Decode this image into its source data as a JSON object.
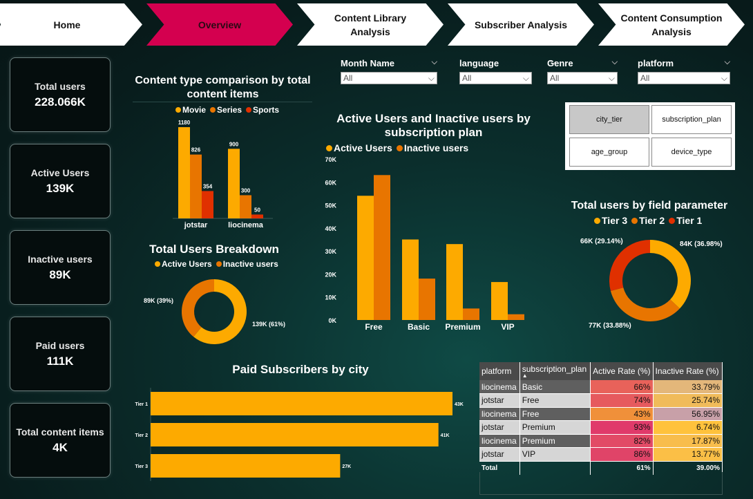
{
  "nav": [
    {
      "label": "Home",
      "active": false
    },
    {
      "label": "Overview",
      "active": true
    },
    {
      "label": "Content Library Analysis",
      "active": false
    },
    {
      "label": "Subscriber Analysis",
      "active": false
    },
    {
      "label": "Content Consumption Analysis",
      "active": false
    }
  ],
  "kpis": [
    {
      "label": "Total users",
      "value": "228.066K"
    },
    {
      "label": "Active Users",
      "value": "139K"
    },
    {
      "label": "Inactive users",
      "value": "89K"
    },
    {
      "label": "Paid users",
      "value": "111K"
    },
    {
      "label": "Total content items",
      "value": "4K"
    }
  ],
  "filters": [
    {
      "label": "Month Name",
      "value": "All"
    },
    {
      "label": "language",
      "value": "All"
    },
    {
      "label": "Genre",
      "value": "All"
    },
    {
      "label": "platform",
      "value": "All"
    }
  ],
  "field_params": [
    {
      "label": "city_tier",
      "selected": true
    },
    {
      "label": "subscription_plan",
      "selected": false
    },
    {
      "label": "age_group",
      "selected": false
    },
    {
      "label": "device_type",
      "selected": false
    }
  ],
  "colors": {
    "yellow": "#fdaa00",
    "orange": "#e87500",
    "red": "#e03000",
    "accent": "#d4004f"
  },
  "content_chart": {
    "title": "Content type comparison by total content items",
    "legend": [
      "Movie",
      "Series",
      "Sports"
    ],
    "chart_data": {
      "type": "bar",
      "categories": [
        "jotstar",
        "liocinema"
      ],
      "series": [
        {
          "name": "Movie",
          "values": [
            1180,
            900
          ]
        },
        {
          "name": "Series",
          "values": [
            826,
            300
          ]
        },
        {
          "name": "Sports",
          "values": [
            354,
            50
          ]
        }
      ],
      "data_labels": [
        [
          "1180",
          "826",
          "354"
        ],
        [
          "900",
          "300",
          "50"
        ]
      ]
    }
  },
  "breakdown_chart": {
    "title": "Total Users Breakdown",
    "legend": [
      "Active Users",
      "Inactive users"
    ],
    "chart_data": {
      "type": "pie",
      "labels": [
        "Active Users",
        "Inactive users"
      ],
      "values": [
        139,
        89
      ],
      "data_labels": [
        "139K (61%)",
        "89K (39%)"
      ]
    }
  },
  "plan_chart": {
    "title": "Active Users and Inactive users by subscription plan",
    "legend": [
      "Active Users",
      "Inactive users"
    ],
    "chart_data": {
      "type": "bar",
      "categories": [
        "Free",
        "Basic",
        "Premium",
        "VIP"
      ],
      "series": [
        {
          "name": "Active Users",
          "values": [
            54000,
            35000,
            33000,
            16500
          ]
        },
        {
          "name": "Inactive users",
          "values": [
            63000,
            18000,
            5000,
            2500
          ]
        }
      ],
      "ylim": [
        0,
        70000
      ],
      "yticks": [
        "0K",
        "10K",
        "20K",
        "30K",
        "40K",
        "50K",
        "60K",
        "70K"
      ]
    }
  },
  "tier_chart": {
    "title": "Total users by field parameter",
    "legend": [
      "Tier 3",
      "Tier 2",
      "Tier 1"
    ],
    "chart_data": {
      "type": "pie",
      "labels": [
        "Tier 3",
        "Tier 2",
        "Tier 1"
      ],
      "values": [
        84,
        77,
        66
      ],
      "data_labels": [
        "84K (36.98%)",
        "77K (33.88%)",
        "66K (29.14%)"
      ]
    }
  },
  "city_chart": {
    "title": "Paid Subscribers by city",
    "chart_data": {
      "type": "bar",
      "orientation": "horizontal",
      "categories": [
        "Tier 1",
        "Tier 2",
        "Tier 3"
      ],
      "values": [
        43,
        41,
        27
      ],
      "data_labels": [
        "43K",
        "41K",
        "27K"
      ]
    }
  },
  "table": {
    "headers": [
      "platform",
      "subscription_plan",
      "Active Rate (%)",
      "Inactive Rate (%)"
    ],
    "rows": [
      {
        "platform": "liocinema",
        "plan": "Basic",
        "active": "66%",
        "inactive": "33.79%",
        "active_color": "#e8625a",
        "inactive_color": "#e3b77a"
      },
      {
        "platform": "jotstar",
        "plan": "Free",
        "active": "74%",
        "inactive": "25.74%",
        "active_color": "#e65a5e",
        "inactive_color": "#f0bb5a"
      },
      {
        "platform": "liocinema",
        "plan": "Free",
        "active": "43%",
        "inactive": "56.95%",
        "active_color": "#f0903a",
        "inactive_color": "#c8a0a8"
      },
      {
        "platform": "jotstar",
        "plan": "Premium",
        "active": "93%",
        "inactive": "6.74%",
        "active_color": "#e03a6a",
        "inactive_color": "#ffc23c"
      },
      {
        "platform": "liocinema",
        "plan": "Premium",
        "active": "82%",
        "inactive": "17.87%",
        "active_color": "#e24a66",
        "inactive_color": "#f8bd4c"
      },
      {
        "platform": "jotstar",
        "plan": "VIP",
        "active": "86%",
        "inactive": "13.77%",
        "active_color": "#e04468",
        "inactive_color": "#fbbf46"
      }
    ],
    "total": {
      "label": "Total",
      "active": "61%",
      "inactive": "39.00%"
    }
  }
}
